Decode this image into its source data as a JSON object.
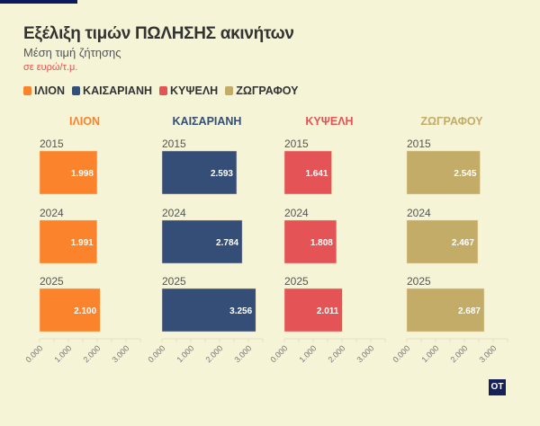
{
  "title": "Εξέλιξη τιμών ΠΩΛΗΣΗΣ ακινήτων",
  "subtitle": "Μέση τιμή ζήτησης",
  "unit": "σε ευρώ/τ.μ.",
  "logo": "OT",
  "chart_data": {
    "type": "bar",
    "orientation": "horizontal",
    "small_multiples": true,
    "title": "Εξέλιξη τιμών ΠΩΛΗΣΗΣ ακινήτων",
    "subtitle": "Μέση τιμή ζήτησης",
    "categories": [
      "2015",
      "2024",
      "2025"
    ],
    "xlim": [
      0,
      3500
    ],
    "xticks": [
      "0.000",
      "1.000",
      "2.000",
      "3.000"
    ],
    "legend_position": "top-left",
    "series": [
      {
        "name": "ΙΛΙΟΝ",
        "color": "#fb832c",
        "values": [
          1998,
          1991,
          2100
        ],
        "labels": [
          "1.998",
          "1.991",
          "2.100"
        ]
      },
      {
        "name": "ΚΑΙΣΑΡΙΑΝΗ",
        "color": "#344e77",
        "values": [
          2593,
          2784,
          3256
        ],
        "labels": [
          "2.593",
          "2.784",
          "3.256"
        ]
      },
      {
        "name": "ΚΥΨΕΛΗ",
        "color": "#e45355",
        "values": [
          1641,
          1808,
          2011
        ],
        "labels": [
          "1.641",
          "1.808",
          "2.011"
        ]
      },
      {
        "name": "ΖΩΓΡΑΦΟΥ",
        "color": "#c2ac67",
        "values": [
          2545,
          2467,
          2687
        ],
        "labels": [
          "2.545",
          "2.467",
          "2.687"
        ]
      }
    ]
  }
}
